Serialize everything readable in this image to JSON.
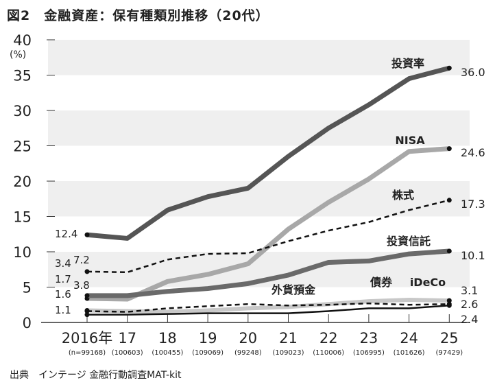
{
  "title": "図2　金融資産：保有種類別推移（20代）",
  "source": "出典　インテージ 金融行動調査MAT-kit",
  "chart_data": {
    "type": "line",
    "title": "図2　金融資産：保有種類別推移（20代）",
    "ylabel": "(%)",
    "ylim": [
      0,
      40
    ],
    "yticks": [
      0,
      5,
      10,
      15,
      20,
      25,
      30,
      35,
      40
    ],
    "categories": [
      "2016年",
      "17",
      "18",
      "19",
      "20",
      "21",
      "22",
      "23",
      "24",
      "25"
    ],
    "sample_sizes": [
      "(n=99168)",
      "(100603)",
      "(100455)",
      "(109069)",
      "(99248)",
      "(109023)",
      "(110006)",
      "(106995)",
      "(101626)",
      "(97429)"
    ],
    "grid": "alternating horizontal bands",
    "series": [
      {
        "name": "投資率",
        "color": "#555555",
        "style": "thick",
        "values": [
          12.4,
          11.9,
          15.9,
          17.8,
          19.0,
          23.5,
          27.5,
          30.8,
          34.5,
          36.0
        ],
        "start_label": "12.4",
        "end_label": "36.0"
      },
      {
        "name": "NISA",
        "color": "#a8a8a8",
        "style": "thick",
        "values": [
          3.4,
          3.3,
          5.8,
          6.8,
          8.3,
          13.2,
          17.0,
          20.3,
          24.2,
          24.6
        ],
        "start_label": "3.4",
        "end_label": "24.6"
      },
      {
        "name": "株式",
        "color": "#111111",
        "style": "dashed",
        "values": [
          7.2,
          7.1,
          8.9,
          9.7,
          9.8,
          11.5,
          13.0,
          14.2,
          15.9,
          17.3
        ],
        "start_label": "7.2",
        "end_label": "17.3"
      },
      {
        "name": "投資信託",
        "color": "#6a6a6a",
        "style": "thick",
        "values": [
          3.8,
          3.8,
          4.4,
          4.8,
          5.5,
          6.7,
          8.5,
          8.7,
          9.7,
          10.1
        ],
        "start_label": "3.8",
        "end_label": "10.1"
      },
      {
        "name": "iDeCo",
        "color": "#c8c8c8",
        "style": "medium",
        "values": [
          1.7,
          1.6,
          1.5,
          1.7,
          2.0,
          2.2,
          2.6,
          3.0,
          3.2,
          3.1
        ],
        "start_label": "1.7",
        "end_label": "3.1"
      },
      {
        "name": "外貨預金",
        "color": "#111111",
        "style": "dashed",
        "values": [
          1.6,
          1.5,
          2.0,
          2.3,
          2.6,
          2.4,
          2.5,
          2.7,
          2.5,
          2.6
        ],
        "start_label": "1.6",
        "end_label": "2.6"
      },
      {
        "name": "債券",
        "color": "#111111",
        "style": "thin",
        "values": [
          1.1,
          1.1,
          1.2,
          1.3,
          1.3,
          1.3,
          1.6,
          2.0,
          2.0,
          2.4
        ],
        "start_label": "1.1",
        "end_label": "2.4"
      }
    ]
  }
}
